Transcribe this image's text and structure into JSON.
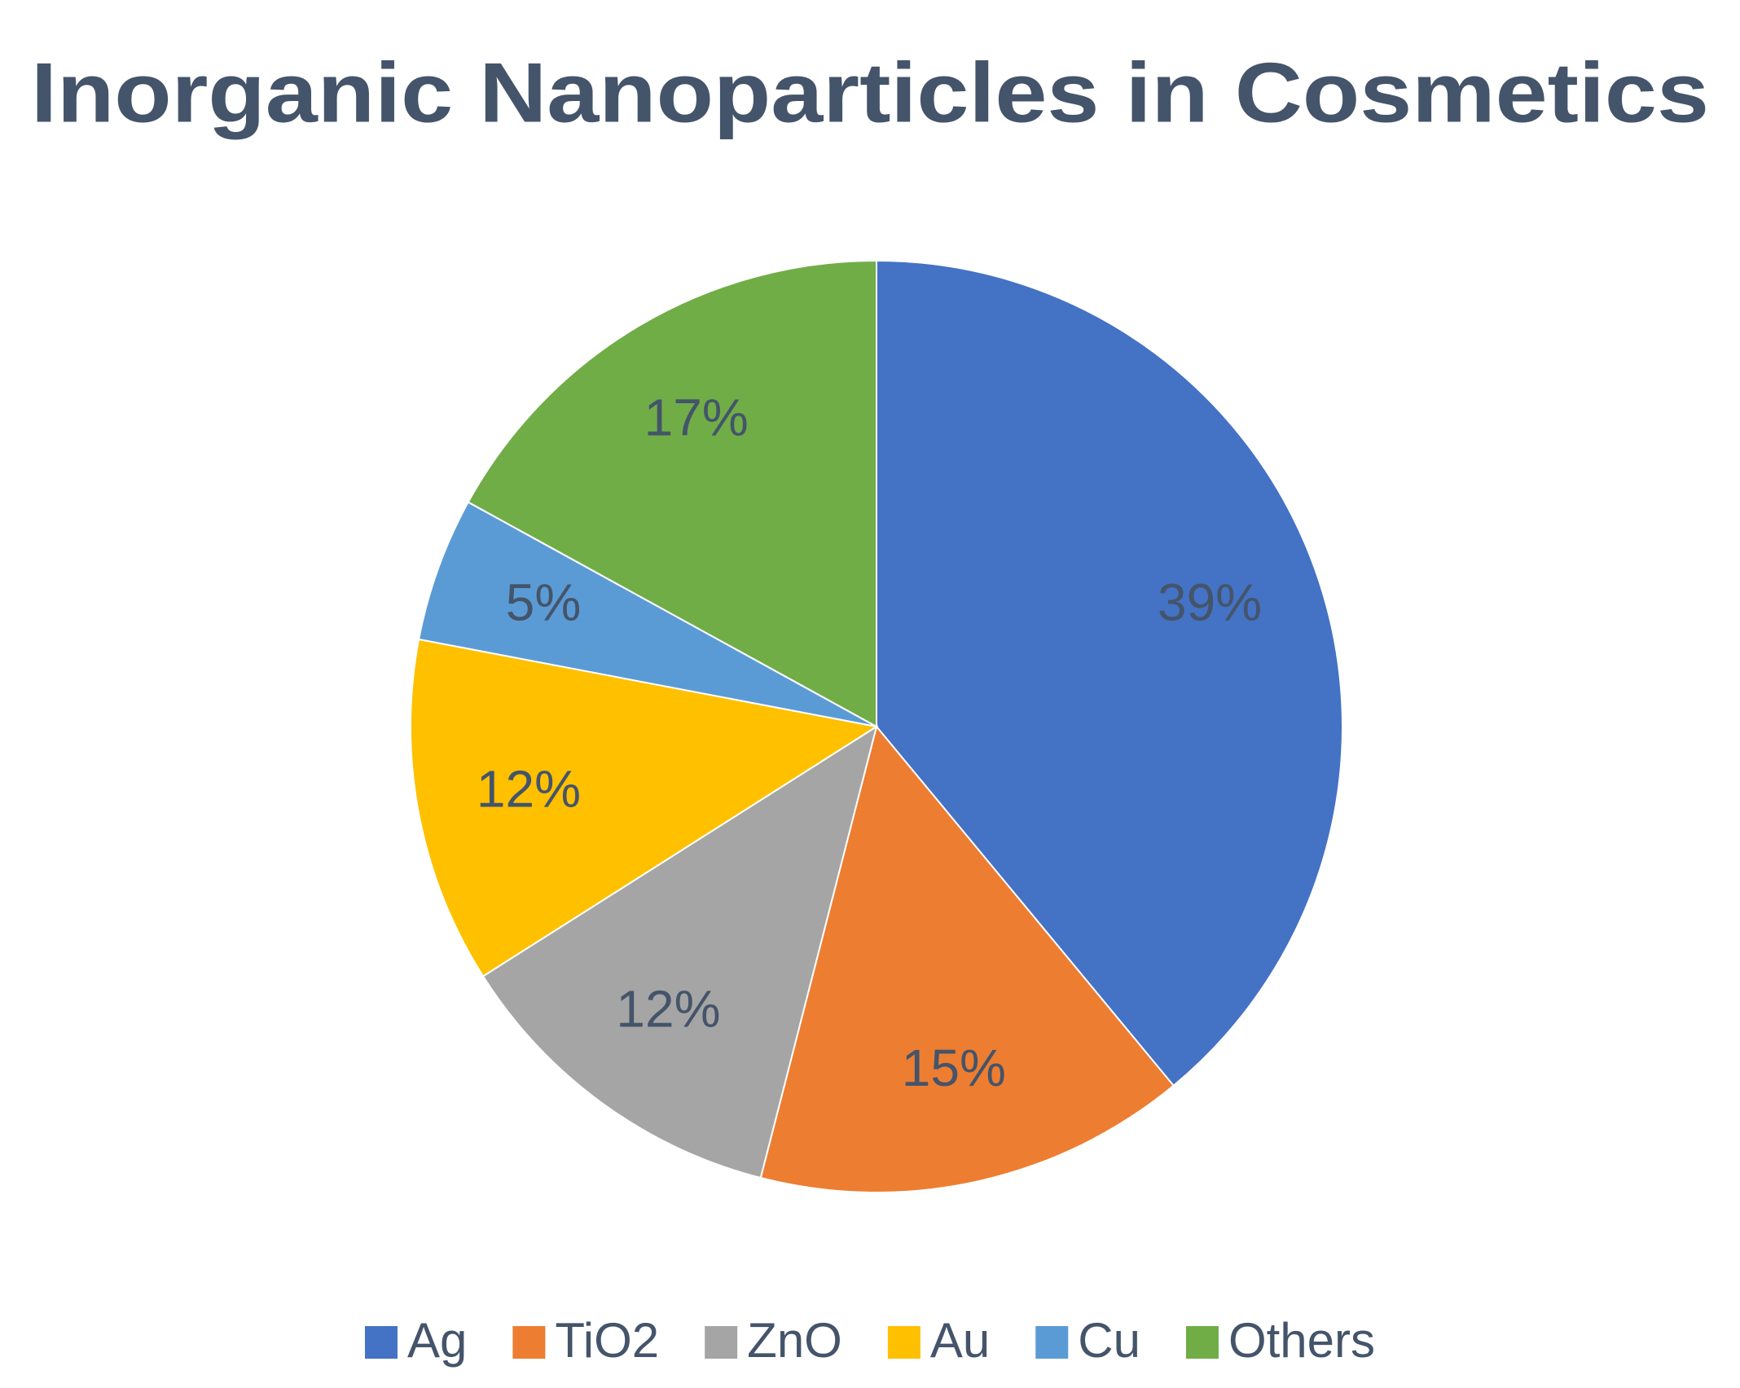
{
  "chart_data": {
    "type": "pie",
    "title": "Inorganic Nanoparticles in Cosmetics",
    "categories": [
      "Ag",
      "TiO2",
      "ZnO",
      "Au",
      "Cu",
      "Others"
    ],
    "values": [
      39,
      15,
      12,
      12,
      5,
      17
    ],
    "value_labels": [
      "39%",
      "15%",
      "12%",
      "12%",
      "5%",
      "17%"
    ],
    "colors": [
      "#4472c4",
      "#ed7d31",
      "#a5a5a5",
      "#ffc000",
      "#5b9bd5",
      "#70ad47"
    ],
    "legend": "bottom"
  }
}
